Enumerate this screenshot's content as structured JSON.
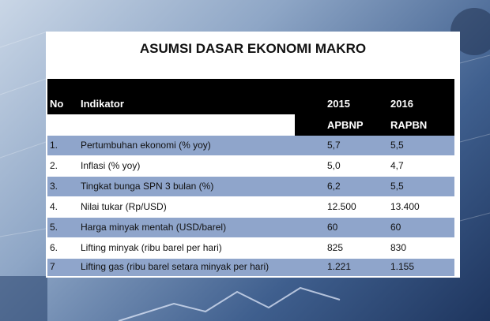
{
  "title": "ASUMSI DASAR EKONOMI MAKRO",
  "table": {
    "header": [
      "No",
      "Indikator",
      "2015",
      "2016"
    ],
    "subheader": [
      "APBNP",
      "RAPBN"
    ],
    "rows": [
      [
        "1.",
        "Pertumbuhan ekonomi  (% yoy)",
        "5,7",
        "5,5"
      ],
      [
        "2.",
        "Inflasi (% yoy)",
        "5,0",
        "4,7"
      ],
      [
        "3.",
        "Tingkat bunga SPN 3 bulan (%)",
        "6,2",
        "5,5"
      ],
      [
        "4.",
        "Nilai tukar (Rp/USD)",
        "12.500",
        "13.400"
      ],
      [
        "5.",
        "Harga minyak mentah (USD/barel)",
        "60",
        "60"
      ],
      [
        "6.",
        "Lifting minyak (ribu barel per hari)",
        "825",
        "830"
      ],
      [
        "7",
        "Lifting gas  (ribu barel setara minyak per hari)",
        "1.221",
        "1.155"
      ]
    ]
  }
}
